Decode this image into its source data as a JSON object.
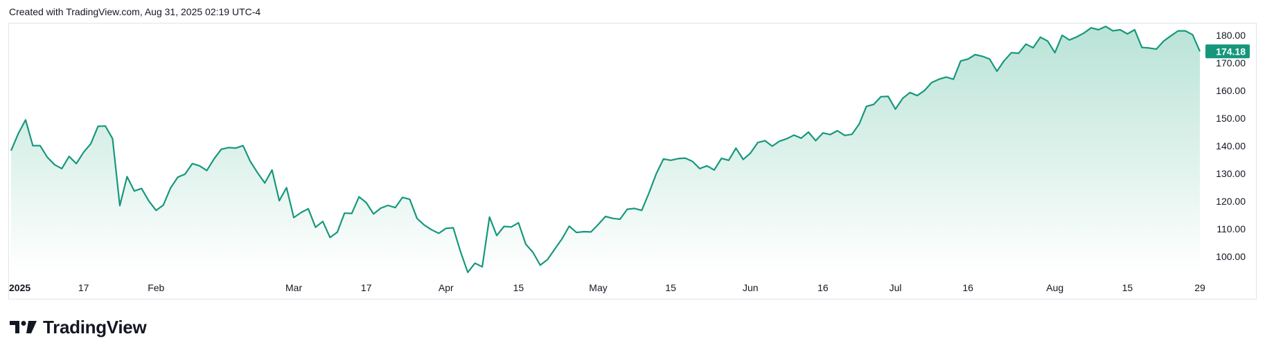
{
  "header": {
    "created_with": "Created with TradingView.com, Aug 31, 2025 02:19 UTC-4"
  },
  "brand": {
    "name": "TradingView"
  },
  "colors": {
    "line": "#16977c",
    "fill_top": "#b9e3d6",
    "fill_bottom": "#ffffff",
    "price_badge": "#16977c",
    "axis_text": "#131722",
    "border": "#e0e3eb"
  },
  "chart_data": {
    "type": "area",
    "ylim": [
      90,
      185
    ],
    "y_ticks": [
      100,
      110,
      120,
      130,
      140,
      150,
      160,
      170,
      180
    ],
    "y_tick_labels": [
      "100.00",
      "110.00",
      "120.00",
      "130.00",
      "140.00",
      "150.00",
      "160.00",
      "170.00",
      "180.00"
    ],
    "last_price": 174.18,
    "last_price_label": "174.18",
    "x_ticks": [
      {
        "date": "2025-01-02",
        "label": "2025",
        "bold": true
      },
      {
        "date": "2025-01-17",
        "label": "17"
      },
      {
        "date": "2025-02-03",
        "label": "Feb"
      },
      {
        "date": "2025-03-03",
        "label": "Mar"
      },
      {
        "date": "2025-03-17",
        "label": "17"
      },
      {
        "date": "2025-04-01",
        "label": "Apr"
      },
      {
        "date": "2025-04-15",
        "label": "15"
      },
      {
        "date": "2025-05-01",
        "label": "May"
      },
      {
        "date": "2025-05-15",
        "label": "15"
      },
      {
        "date": "2025-06-02",
        "label": "Jun"
      },
      {
        "date": "2025-06-16",
        "label": "16"
      },
      {
        "date": "2025-07-01",
        "label": "Jul"
      },
      {
        "date": "2025-07-16",
        "label": "16"
      },
      {
        "date": "2025-08-01",
        "label": "Aug"
      },
      {
        "date": "2025-08-15",
        "label": "15"
      },
      {
        "date": "2025-08-29",
        "label": "29"
      }
    ],
    "series": [
      {
        "points": [
          [
            "2025-01-02",
            138.3
          ],
          [
            "2025-01-03",
            144.5
          ],
          [
            "2025-01-06",
            149.4
          ],
          [
            "2025-01-07",
            140.1
          ],
          [
            "2025-01-08",
            140.1
          ],
          [
            "2025-01-10",
            135.9
          ],
          [
            "2025-01-13",
            133.2
          ],
          [
            "2025-01-14",
            131.8
          ],
          [
            "2025-01-15",
            136.2
          ],
          [
            "2025-01-16",
            133.6
          ],
          [
            "2025-01-17",
            137.7
          ],
          [
            "2025-01-21",
            140.8
          ],
          [
            "2025-01-22",
            147.1
          ],
          [
            "2025-01-23",
            147.2
          ],
          [
            "2025-01-24",
            142.6
          ],
          [
            "2025-01-27",
            118.4
          ],
          [
            "2025-01-28",
            128.9
          ],
          [
            "2025-01-29",
            123.7
          ],
          [
            "2025-01-30",
            124.6
          ],
          [
            "2025-01-31",
            120.1
          ],
          [
            "2025-02-03",
            116.7
          ],
          [
            "2025-02-04",
            118.6
          ],
          [
            "2025-02-05",
            124.8
          ],
          [
            "2025-02-06",
            128.7
          ],
          [
            "2025-02-07",
            129.8
          ],
          [
            "2025-02-10",
            133.6
          ],
          [
            "2025-02-11",
            132.8
          ],
          [
            "2025-02-12",
            131.1
          ],
          [
            "2025-02-13",
            135.3
          ],
          [
            "2025-02-14",
            138.8
          ],
          [
            "2025-02-18",
            139.4
          ],
          [
            "2025-02-19",
            139.2
          ],
          [
            "2025-02-20",
            140.1
          ],
          [
            "2025-02-21",
            134.4
          ],
          [
            "2025-02-24",
            130.3
          ],
          [
            "2025-02-25",
            126.6
          ],
          [
            "2025-02-26",
            131.3
          ],
          [
            "2025-02-27",
            120.2
          ],
          [
            "2025-02-28",
            124.9
          ],
          [
            "2025-03-03",
            114.1
          ],
          [
            "2025-03-04",
            115.9
          ],
          [
            "2025-03-05",
            117.3
          ],
          [
            "2025-03-06",
            110.6
          ],
          [
            "2025-03-07",
            112.7
          ],
          [
            "2025-03-10",
            106.9
          ],
          [
            "2025-03-11",
            108.8
          ],
          [
            "2025-03-12",
            115.7
          ],
          [
            "2025-03-13",
            115.6
          ],
          [
            "2025-03-14",
            121.6
          ],
          [
            "2025-03-17",
            119.5
          ],
          [
            "2025-03-18",
            115.4
          ],
          [
            "2025-03-19",
            117.5
          ],
          [
            "2025-03-20",
            118.5
          ],
          [
            "2025-03-21",
            117.7
          ],
          [
            "2025-03-24",
            121.4
          ],
          [
            "2025-03-25",
            120.7
          ],
          [
            "2025-03-26",
            113.8
          ],
          [
            "2025-03-27",
            111.4
          ],
          [
            "2025-03-28",
            109.7
          ],
          [
            "2025-03-31",
            108.4
          ],
          [
            "2025-04-01",
            110.2
          ],
          [
            "2025-04-02",
            110.4
          ],
          [
            "2025-04-03",
            101.8
          ],
          [
            "2025-04-04",
            94.3
          ],
          [
            "2025-04-07",
            97.6
          ],
          [
            "2025-04-08",
            96.3
          ],
          [
            "2025-04-09",
            114.3
          ],
          [
            "2025-04-10",
            107.6
          ],
          [
            "2025-04-11",
            110.9
          ],
          [
            "2025-04-14",
            110.7
          ],
          [
            "2025-04-15",
            112.2
          ],
          [
            "2025-04-16",
            104.5
          ],
          [
            "2025-04-17",
            101.5
          ],
          [
            "2025-04-21",
            96.9
          ],
          [
            "2025-04-22",
            98.9
          ],
          [
            "2025-04-23",
            102.7
          ],
          [
            "2025-04-24",
            106.4
          ],
          [
            "2025-04-25",
            111.0
          ],
          [
            "2025-04-28",
            108.7
          ],
          [
            "2025-04-29",
            109.0
          ],
          [
            "2025-04-30",
            108.9
          ],
          [
            "2025-05-01",
            111.6
          ],
          [
            "2025-05-02",
            114.5
          ],
          [
            "2025-05-05",
            113.8
          ],
          [
            "2025-05-06",
            113.5
          ],
          [
            "2025-05-07",
            117.1
          ],
          [
            "2025-05-08",
            117.4
          ],
          [
            "2025-05-09",
            116.7
          ],
          [
            "2025-05-12",
            123.0
          ],
          [
            "2025-05-13",
            129.9
          ],
          [
            "2025-05-14",
            135.3
          ],
          [
            "2025-05-15",
            134.8
          ],
          [
            "2025-05-16",
            135.4
          ],
          [
            "2025-05-19",
            135.6
          ],
          [
            "2025-05-20",
            134.4
          ],
          [
            "2025-05-21",
            131.8
          ],
          [
            "2025-05-22",
            132.8
          ],
          [
            "2025-05-23",
            131.3
          ],
          [
            "2025-05-27",
            135.5
          ],
          [
            "2025-05-28",
            134.8
          ],
          [
            "2025-05-29",
            139.2
          ],
          [
            "2025-05-30",
            135.1
          ],
          [
            "2025-06-02",
            137.4
          ],
          [
            "2025-06-03",
            141.2
          ],
          [
            "2025-06-04",
            141.9
          ],
          [
            "2025-06-05",
            139.9
          ],
          [
            "2025-06-06",
            141.7
          ],
          [
            "2025-06-09",
            142.6
          ],
          [
            "2025-06-10",
            143.9
          ],
          [
            "2025-06-11",
            142.8
          ],
          [
            "2025-06-12",
            145.0
          ],
          [
            "2025-06-13",
            141.9
          ],
          [
            "2025-06-16",
            144.7
          ],
          [
            "2025-06-17",
            144.1
          ],
          [
            "2025-06-18",
            145.5
          ],
          [
            "2025-06-20",
            143.8
          ],
          [
            "2025-06-23",
            144.2
          ],
          [
            "2025-06-24",
            147.9
          ],
          [
            "2025-06-25",
            154.3
          ],
          [
            "2025-06-26",
            155.0
          ],
          [
            "2025-06-27",
            157.8
          ],
          [
            "2025-06-30",
            157.9
          ],
          [
            "2025-07-01",
            153.3
          ],
          [
            "2025-07-02",
            157.2
          ],
          [
            "2025-07-03",
            159.3
          ],
          [
            "2025-07-07",
            158.2
          ],
          [
            "2025-07-08",
            160.0
          ],
          [
            "2025-07-09",
            162.9
          ],
          [
            "2025-07-10",
            164.1
          ],
          [
            "2025-07-11",
            164.9
          ],
          [
            "2025-07-14",
            164.1
          ],
          [
            "2025-07-15",
            170.7
          ],
          [
            "2025-07-16",
            171.4
          ],
          [
            "2025-07-17",
            173.0
          ],
          [
            "2025-07-18",
            172.4
          ],
          [
            "2025-07-21",
            171.4
          ],
          [
            "2025-07-22",
            167.0
          ],
          [
            "2025-07-23",
            170.8
          ],
          [
            "2025-07-24",
            173.7
          ],
          [
            "2025-07-25",
            173.5
          ],
          [
            "2025-07-28",
            176.8
          ],
          [
            "2025-07-29",
            175.5
          ],
          [
            "2025-07-30",
            179.3
          ],
          [
            "2025-07-31",
            177.9
          ],
          [
            "2025-08-01",
            173.7
          ],
          [
            "2025-08-04",
            180.0
          ],
          [
            "2025-08-05",
            178.3
          ],
          [
            "2025-08-06",
            179.4
          ],
          [
            "2025-08-07",
            180.8
          ],
          [
            "2025-08-08",
            182.7
          ],
          [
            "2025-08-11",
            182.0
          ],
          [
            "2025-08-12",
            183.2
          ],
          [
            "2025-08-13",
            181.6
          ],
          [
            "2025-08-14",
            182.0
          ],
          [
            "2025-08-15",
            180.5
          ],
          [
            "2025-08-18",
            182.0
          ],
          [
            "2025-08-19",
            175.6
          ],
          [
            "2025-08-20",
            175.4
          ],
          [
            "2025-08-21",
            175.0
          ],
          [
            "2025-08-22",
            177.9
          ],
          [
            "2025-08-25",
            179.8
          ],
          [
            "2025-08-26",
            181.6
          ],
          [
            "2025-08-27",
            181.6
          ],
          [
            "2025-08-28",
            180.2
          ],
          [
            "2025-08-29",
            174.18
          ]
        ]
      }
    ]
  }
}
